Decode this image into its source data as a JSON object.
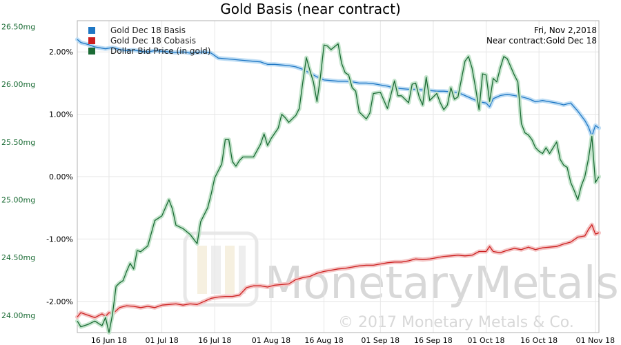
{
  "chart_data": {
    "type": "line",
    "title": "Gold Basis (near contract)",
    "info": {
      "date": "Fri, Nov 2,2018",
      "contract": "Near contract:Gold Dec 18"
    },
    "watermark": {
      "brand": "MonetaryMetals",
      "copyright": "© 2017 Monetary Metals & Co."
    },
    "x_ticks": [
      {
        "day": 9,
        "label": "16 Jun 18"
      },
      {
        "day": 24,
        "label": "01 Jul 18"
      },
      {
        "day": 39,
        "label": "16 Jul 18"
      },
      {
        "day": 55,
        "label": "01 Aug 18"
      },
      {
        "day": 70,
        "label": "16 Aug 18"
      },
      {
        "day": 86,
        "label": "01 Sep 18"
      },
      {
        "day": 101,
        "label": "16 Sep 18"
      },
      {
        "day": 116,
        "label": "01 Oct 18"
      },
      {
        "day": 131,
        "label": "16 Oct 18"
      },
      {
        "day": 147,
        "label": "01 Nov 18"
      }
    ],
    "x_range": [
      0,
      148
    ],
    "left_axis": {
      "ticks": [
        "26.50mg",
        "26.00mg",
        "25.50mg",
        "25.00mg",
        "24.50mg",
        "24.00mg"
      ],
      "values": [
        26.5,
        26.0,
        25.5,
        25.0,
        24.5,
        24.0
      ],
      "range": [
        23.85,
        26.55
      ]
    },
    "right_axis": {
      "ticks": [
        "2.00%",
        "1.00%",
        "0.00%",
        "-1.00%",
        "-2.00%"
      ],
      "values": [
        2,
        1,
        0,
        -1,
        -2
      ],
      "range": [
        -2.5,
        2.5
      ]
    },
    "legend": [
      {
        "label": "Gold Dec 18 Basis",
        "color": "#1f77c4"
      },
      {
        "label": "Gold Dec 18 Cobasis",
        "color": "#cc1f1f"
      },
      {
        "label": "Dollar Bid Price (in gold)",
        "color": "#1a6b34"
      }
    ],
    "series": [
      {
        "axis": "right",
        "color": "#1f77c4",
        "glow": "#bcdcf4",
        "points": [
          [
            0,
            2.2
          ],
          [
            1,
            2.15
          ],
          [
            3,
            2.12
          ],
          [
            5,
            2.08
          ],
          [
            8,
            2.05
          ],
          [
            10,
            2.07
          ],
          [
            12,
            2.04
          ],
          [
            14,
            2.02
          ],
          [
            16,
            2.03
          ],
          [
            18,
            2.01
          ],
          [
            20,
            2.0
          ],
          [
            22,
            2.02
          ],
          [
            24,
            2.01
          ],
          [
            26,
            2.0
          ],
          [
            28,
            1.99
          ],
          [
            30,
            2.0
          ],
          [
            32,
            1.98
          ],
          [
            34,
            1.99
          ],
          [
            36,
            2.0
          ],
          [
            38,
            1.98
          ],
          [
            40,
            1.9
          ],
          [
            42,
            1.89
          ],
          [
            44,
            1.88
          ],
          [
            46,
            1.87
          ],
          [
            48,
            1.86
          ],
          [
            50,
            1.85
          ],
          [
            52,
            1.84
          ],
          [
            54,
            1.8
          ],
          [
            56,
            1.8
          ],
          [
            58,
            1.79
          ],
          [
            60,
            1.78
          ],
          [
            62,
            1.76
          ],
          [
            64,
            1.72
          ],
          [
            66,
            1.66
          ],
          [
            68,
            1.6
          ],
          [
            70,
            1.55
          ],
          [
            72,
            1.54
          ],
          [
            74,
            1.53
          ],
          [
            76,
            1.53
          ],
          [
            78,
            1.52
          ],
          [
            80,
            1.5
          ],
          [
            82,
            1.5
          ],
          [
            84,
            1.49
          ],
          [
            86,
            1.47
          ],
          [
            88,
            1.45
          ],
          [
            90,
            1.42
          ],
          [
            92,
            1.41
          ],
          [
            94,
            1.4
          ],
          [
            96,
            1.4
          ],
          [
            98,
            1.39
          ],
          [
            100,
            1.38
          ],
          [
            102,
            1.37
          ],
          [
            104,
            1.37
          ],
          [
            106,
            1.36
          ],
          [
            108,
            1.35
          ],
          [
            110,
            1.3
          ],
          [
            112,
            1.25
          ],
          [
            114,
            1.2
          ],
          [
            116,
            1.18
          ],
          [
            117,
            1.12
          ],
          [
            118,
            1.25
          ],
          [
            120,
            1.3
          ],
          [
            122,
            1.32
          ],
          [
            124,
            1.3
          ],
          [
            126,
            1.28
          ],
          [
            128,
            1.25
          ],
          [
            130,
            1.2
          ],
          [
            132,
            1.22
          ],
          [
            134,
            1.2
          ],
          [
            136,
            1.18
          ],
          [
            138,
            1.15
          ],
          [
            140,
            1.18
          ],
          [
            142,
            1.05
          ],
          [
            144,
            0.9
          ],
          [
            145,
            0.8
          ],
          [
            146,
            0.65
          ],
          [
            147,
            0.82
          ],
          [
            148,
            0.78
          ]
        ]
      },
      {
        "axis": "right",
        "color": "#cc1f1f",
        "glow": "#f4c4c4",
        "points": [
          [
            0,
            -2.25
          ],
          [
            1,
            -2.18
          ],
          [
            3,
            -2.22
          ],
          [
            5,
            -2.26
          ],
          [
            7,
            -2.2
          ],
          [
            8,
            -2.24
          ],
          [
            9,
            -2.18
          ],
          [
            10,
            -2.2
          ],
          [
            12,
            -2.1
          ],
          [
            14,
            -2.07
          ],
          [
            16,
            -2.08
          ],
          [
            18,
            -2.1
          ],
          [
            20,
            -2.08
          ],
          [
            22,
            -2.1
          ],
          [
            24,
            -2.06
          ],
          [
            26,
            -2.05
          ],
          [
            28,
            -2.04
          ],
          [
            30,
            -2.06
          ],
          [
            32,
            -2.04
          ],
          [
            34,
            -2.05
          ],
          [
            36,
            -2.0
          ],
          [
            38,
            -1.95
          ],
          [
            40,
            -1.93
          ],
          [
            42,
            -1.92
          ],
          [
            44,
            -1.92
          ],
          [
            46,
            -1.9
          ],
          [
            48,
            -1.78
          ],
          [
            50,
            -1.75
          ],
          [
            52,
            -1.75
          ],
          [
            54,
            -1.77
          ],
          [
            56,
            -1.74
          ],
          [
            58,
            -1.73
          ],
          [
            60,
            -1.72
          ],
          [
            62,
            -1.65
          ],
          [
            64,
            -1.62
          ],
          [
            66,
            -1.6
          ],
          [
            68,
            -1.55
          ],
          [
            70,
            -1.52
          ],
          [
            72,
            -1.5
          ],
          [
            74,
            -1.48
          ],
          [
            76,
            -1.47
          ],
          [
            78,
            -1.45
          ],
          [
            80,
            -1.43
          ],
          [
            82,
            -1.42
          ],
          [
            84,
            -1.42
          ],
          [
            86,
            -1.4
          ],
          [
            88,
            -1.38
          ],
          [
            90,
            -1.37
          ],
          [
            92,
            -1.37
          ],
          [
            94,
            -1.35
          ],
          [
            96,
            -1.32
          ],
          [
            98,
            -1.33
          ],
          [
            100,
            -1.32
          ],
          [
            102,
            -1.3
          ],
          [
            104,
            -1.28
          ],
          [
            106,
            -1.27
          ],
          [
            108,
            -1.26
          ],
          [
            110,
            -1.27
          ],
          [
            112,
            -1.26
          ],
          [
            114,
            -1.2
          ],
          [
            116,
            -1.2
          ],
          [
            117,
            -1.12
          ],
          [
            118,
            -1.2
          ],
          [
            120,
            -1.22
          ],
          [
            122,
            -1.18
          ],
          [
            124,
            -1.15
          ],
          [
            126,
            -1.17
          ],
          [
            128,
            -1.13
          ],
          [
            130,
            -1.17
          ],
          [
            132,
            -1.14
          ],
          [
            134,
            -1.13
          ],
          [
            136,
            -1.12
          ],
          [
            138,
            -1.08
          ],
          [
            140,
            -1.05
          ],
          [
            142,
            -0.97
          ],
          [
            144,
            -0.95
          ],
          [
            145,
            -0.85
          ],
          [
            146,
            -0.77
          ],
          [
            147,
            -0.92
          ],
          [
            148,
            -0.9
          ]
        ]
      },
      {
        "axis": "left",
        "color": "#1a6b34",
        "glow": "#c4e4cc",
        "points": [
          [
            0,
            23.95
          ],
          [
            1,
            23.9
          ],
          [
            3,
            23.92
          ],
          [
            5,
            23.95
          ],
          [
            7,
            23.91
          ],
          [
            8,
            23.98
          ],
          [
            9,
            23.85
          ],
          [
            10,
            24.01
          ],
          [
            11,
            24.25
          ],
          [
            12,
            24.28
          ],
          [
            13,
            24.3
          ],
          [
            14,
            24.38
          ],
          [
            15,
            24.45
          ],
          [
            16,
            24.4
          ],
          [
            17,
            24.56
          ],
          [
            18,
            24.55
          ],
          [
            20,
            24.6
          ],
          [
            22,
            24.82
          ],
          [
            24,
            24.86
          ],
          [
            26,
            25.0
          ],
          [
            27,
            24.92
          ],
          [
            28,
            24.78
          ],
          [
            30,
            24.75
          ],
          [
            32,
            24.7
          ],
          [
            34,
            24.62
          ],
          [
            35,
            24.81
          ],
          [
            37,
            24.93
          ],
          [
            38,
            25.05
          ],
          [
            39,
            25.19
          ],
          [
            41,
            25.31
          ],
          [
            42,
            25.52
          ],
          [
            43,
            25.52
          ],
          [
            44,
            25.33
          ],
          [
            45,
            25.29
          ],
          [
            46,
            25.34
          ],
          [
            47,
            25.37
          ],
          [
            48,
            25.37
          ],
          [
            50,
            25.37
          ],
          [
            52,
            25.48
          ],
          [
            53,
            25.57
          ],
          [
            54,
            25.47
          ],
          [
            55,
            25.53
          ],
          [
            57,
            25.62
          ],
          [
            58,
            25.74
          ],
          [
            59,
            25.71
          ],
          [
            60,
            25.67
          ],
          [
            62,
            25.73
          ],
          [
            63,
            25.79
          ],
          [
            64,
            26.02
          ],
          [
            65,
            26.23
          ],
          [
            66,
            26.12
          ],
          [
            67,
            26.02
          ],
          [
            68,
            25.85
          ],
          [
            69,
            26.07
          ],
          [
            70,
            26.34
          ],
          [
            71,
            26.33
          ],
          [
            72,
            26.3
          ],
          [
            74,
            26.35
          ],
          [
            75,
            26.18
          ],
          [
            76,
            26.1
          ],
          [
            77,
            26.08
          ],
          [
            78,
            25.97
          ],
          [
            79,
            25.94
          ],
          [
            80,
            25.76
          ],
          [
            82,
            25.7
          ],
          [
            83,
            25.75
          ],
          [
            84,
            25.92
          ],
          [
            86,
            25.93
          ],
          [
            88,
            25.79
          ],
          [
            90,
            26.03
          ],
          [
            91,
            25.9
          ],
          [
            92,
            25.9
          ],
          [
            94,
            25.84
          ],
          [
            95,
            26.0
          ],
          [
            96,
            26.01
          ],
          [
            97,
            25.89
          ],
          [
            98,
            25.82
          ],
          [
            99,
            26.06
          ],
          [
            100,
            25.86
          ],
          [
            102,
            25.92
          ],
          [
            103,
            25.84
          ],
          [
            104,
            25.78
          ],
          [
            105,
            25.82
          ],
          [
            106,
            25.97
          ],
          [
            107,
            25.87
          ],
          [
            108,
            25.89
          ],
          [
            110,
            26.2
          ],
          [
            111,
            26.24
          ],
          [
            112,
            26.14
          ],
          [
            113,
            25.97
          ],
          [
            114,
            25.78
          ],
          [
            115,
            26.09
          ],
          [
            116,
            26.08
          ],
          [
            117,
            25.85
          ],
          [
            118,
            26.05
          ],
          [
            119,
            26.02
          ],
          [
            120,
            26.14
          ],
          [
            121,
            26.24
          ],
          [
            122,
            26.22
          ],
          [
            124,
            26.08
          ],
          [
            125,
            26.02
          ],
          [
            126,
            25.66
          ],
          [
            127,
            25.58
          ],
          [
            128,
            25.56
          ],
          [
            129,
            25.52
          ],
          [
            130,
            25.45
          ],
          [
            131,
            25.42
          ],
          [
            132,
            25.4
          ],
          [
            133,
            25.45
          ],
          [
            134,
            25.4
          ],
          [
            136,
            25.5
          ],
          [
            137,
            25.35
          ],
          [
            138,
            25.3
          ],
          [
            139,
            25.28
          ],
          [
            140,
            25.15
          ],
          [
            141,
            25.08
          ],
          [
            142,
            25.0
          ],
          [
            143,
            25.12
          ],
          [
            144,
            25.2
          ],
          [
            145,
            25.35
          ],
          [
            146,
            25.55
          ],
          [
            147,
            25.15
          ],
          [
            148,
            25.2
          ]
        ]
      }
    ]
  }
}
